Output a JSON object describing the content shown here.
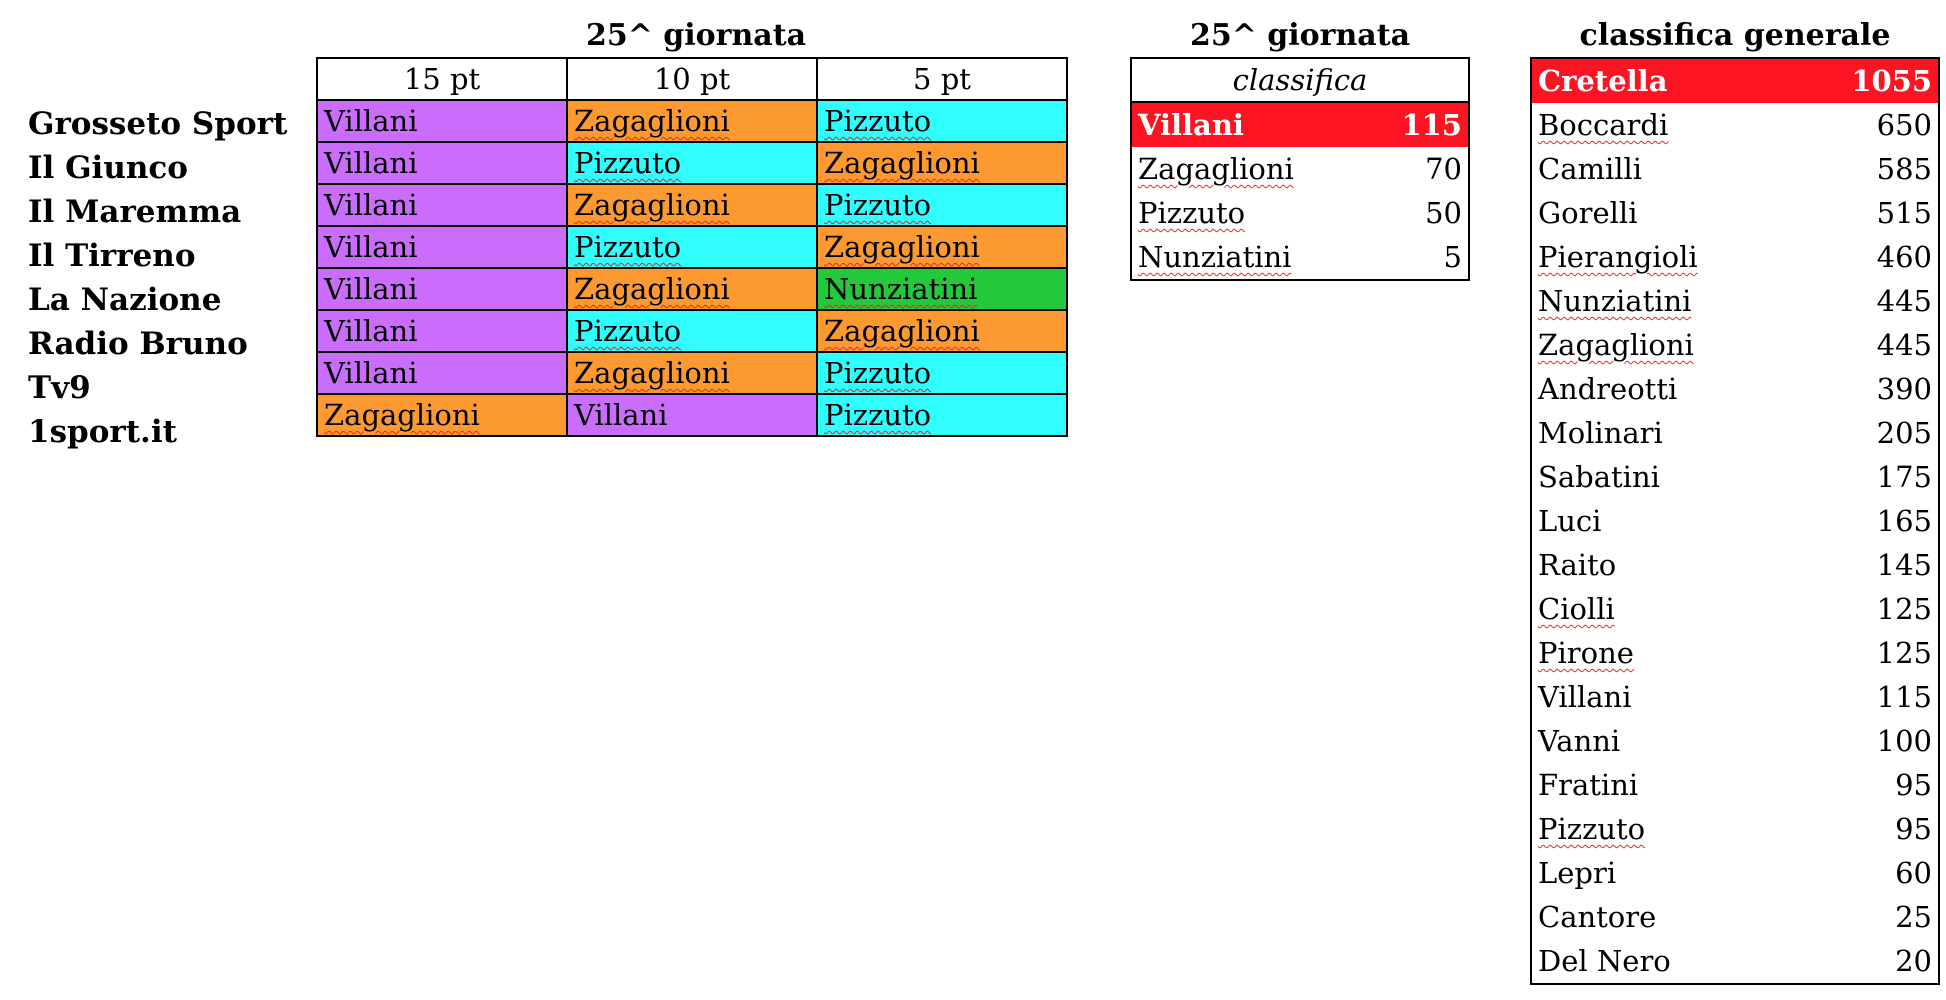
{
  "round_title": "25^ giornata",
  "picks": {
    "columns": [
      "15 pt",
      "10 pt",
      "5 pt"
    ],
    "rows": [
      {
        "source": "Grosseto Sport",
        "cells": [
          {
            "name": "Villani",
            "color": "#cb6dfc"
          },
          {
            "name": "Zagaglioni",
            "color": "#fc9a31"
          },
          {
            "name": "Pizzuto",
            "color": "#30fdfd"
          }
        ]
      },
      {
        "source": "Il Giunco",
        "cells": [
          {
            "name": "Villani",
            "color": "#cb6dfc"
          },
          {
            "name": "Pizzuto",
            "color": "#30fdfd"
          },
          {
            "name": "Zagaglioni",
            "color": "#fc9a31"
          }
        ]
      },
      {
        "source": "Il Maremma",
        "cells": [
          {
            "name": "Villani",
            "color": "#cb6dfc"
          },
          {
            "name": "Zagaglioni",
            "color": "#fc9a31"
          },
          {
            "name": "Pizzuto",
            "color": "#30fdfd"
          }
        ]
      },
      {
        "source": "Il Tirreno",
        "cells": [
          {
            "name": "Villani",
            "color": "#cb6dfc"
          },
          {
            "name": "Pizzuto",
            "color": "#30fdfd"
          },
          {
            "name": "Zagaglioni",
            "color": "#fc9a31"
          }
        ]
      },
      {
        "source": "La Nazione",
        "cells": [
          {
            "name": "Villani",
            "color": "#cb6dfc"
          },
          {
            "name": "Zagaglioni",
            "color": "#fc9a31"
          },
          {
            "name": "Nunziatini",
            "color": "#23c93a"
          }
        ]
      },
      {
        "source": "Radio Bruno",
        "cells": [
          {
            "name": "Villani",
            "color": "#cb6dfc"
          },
          {
            "name": "Pizzuto",
            "color": "#30fdfd"
          },
          {
            "name": "Zagaglioni",
            "color": "#fc9a31"
          }
        ]
      },
      {
        "source": "Tv9",
        "cells": [
          {
            "name": "Villani",
            "color": "#cb6dfc"
          },
          {
            "name": "Zagaglioni",
            "color": "#fc9a31"
          },
          {
            "name": "Pizzuto",
            "color": "#30fdfd"
          }
        ]
      },
      {
        "source": "1sport.it",
        "cells": [
          {
            "name": "Zagaglioni",
            "color": "#fc9a31"
          },
          {
            "name": "Villani",
            "color": "#cb6dfc"
          },
          {
            "name": "Pizzuto",
            "color": "#30fdfd"
          }
        ]
      }
    ]
  },
  "round_standings": {
    "title": "25^ giornata",
    "subtitle": "classifica",
    "leader_color": "#fc1423",
    "rows": [
      {
        "name": "Villani",
        "points": "115"
      },
      {
        "name": "Zagaglioni",
        "points": "70"
      },
      {
        "name": "Pizzuto",
        "points": "50"
      },
      {
        "name": "Nunziatini",
        "points": "5"
      }
    ]
  },
  "overall_standings": {
    "title": "classifica generale",
    "leader_color": "#fc1423",
    "rows": [
      {
        "name": "Cretella",
        "points": "1055"
      },
      {
        "name": "Boccardi",
        "points": "650"
      },
      {
        "name": "Camilli",
        "points": "585"
      },
      {
        "name": "Gorelli",
        "points": "515"
      },
      {
        "name": "Pierangioli",
        "points": "460"
      },
      {
        "name": "Nunziatini",
        "points": "445"
      },
      {
        "name": "Zagaglioni",
        "points": "445"
      },
      {
        "name": "Andreotti",
        "points": "390"
      },
      {
        "name": "Molinari",
        "points": "205"
      },
      {
        "name": "Sabatini",
        "points": "175"
      },
      {
        "name": "Luci",
        "points": "165"
      },
      {
        "name": "Raito",
        "points": "145"
      },
      {
        "name": "Ciolli",
        "points": "125"
      },
      {
        "name": "Pirone",
        "points": "125"
      },
      {
        "name": "Villani",
        "points": "115"
      },
      {
        "name": "Vanni",
        "points": "100"
      },
      {
        "name": "Fratini",
        "points": "95"
      },
      {
        "name": "Pizzuto",
        "points": "95"
      },
      {
        "name": "Lepri",
        "points": "60"
      },
      {
        "name": "Cantore",
        "points": "25"
      },
      {
        "name": "Del Nero",
        "points": "20"
      }
    ]
  }
}
